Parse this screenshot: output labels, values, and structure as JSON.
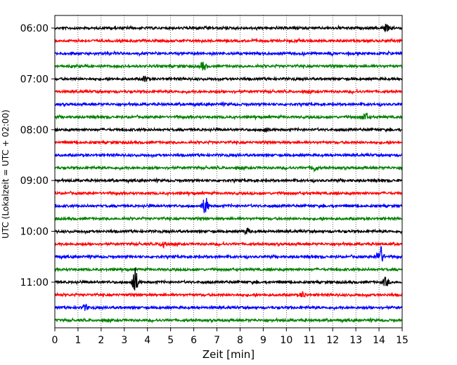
{
  "chart_data": {
    "type": "line",
    "title": "",
    "xlabel": "Zeit  [min]",
    "ylabel": "UTC (Lokalzeit = UTC + 02:00)",
    "xlim": [
      0,
      15
    ],
    "x_ticks": [
      "0",
      "1",
      "2",
      "3",
      "4",
      "5",
      "6",
      "7",
      "8",
      "9",
      "10",
      "11",
      "12",
      "13",
      "14",
      "15"
    ],
    "y_tick_labels": [
      "06:00",
      "07:00",
      "08:00",
      "09:00",
      "10:00",
      "11:00"
    ],
    "y_tick_trace_index": [
      0,
      4,
      8,
      12,
      16,
      20
    ],
    "trace_interval_minutes": 15,
    "grid": "vertical dotted",
    "legend": "none",
    "color_cycle": [
      "#000000",
      "#ff0000",
      "#0000ff",
      "#008000"
    ],
    "traces": [
      {
        "start": "06:00",
        "color": "#000000",
        "events": [
          {
            "t": 14.3,
            "amp": 0.28
          }
        ]
      },
      {
        "start": "06:15",
        "color": "#ff0000",
        "events": []
      },
      {
        "start": "06:30",
        "color": "#0000ff",
        "events": []
      },
      {
        "start": "06:45",
        "color": "#008000",
        "events": [
          {
            "t": 6.4,
            "amp": 0.3
          }
        ]
      },
      {
        "start": "07:00",
        "color": "#000000",
        "events": [
          {
            "t": 3.9,
            "amp": 0.22
          }
        ]
      },
      {
        "start": "07:15",
        "color": "#ff0000",
        "events": []
      },
      {
        "start": "07:30",
        "color": "#0000ff",
        "events": []
      },
      {
        "start": "07:45",
        "color": "#008000",
        "events": [
          {
            "t": 13.4,
            "amp": 0.3
          }
        ]
      },
      {
        "start": "08:00",
        "color": "#000000",
        "events": [
          {
            "t": 9.1,
            "amp": 0.25
          }
        ]
      },
      {
        "start": "08:15",
        "color": "#ff0000",
        "events": []
      },
      {
        "start": "08:30",
        "color": "#0000ff",
        "events": []
      },
      {
        "start": "08:45",
        "color": "#008000",
        "events": [
          {
            "t": 11.2,
            "amp": 0.22
          }
        ]
      },
      {
        "start": "09:00",
        "color": "#000000",
        "events": []
      },
      {
        "start": "09:15",
        "color": "#ff0000",
        "events": []
      },
      {
        "start": "09:30",
        "color": "#0000ff",
        "events": [
          {
            "t": 6.5,
            "amp": 0.7
          }
        ]
      },
      {
        "start": "09:45",
        "color": "#008000",
        "events": []
      },
      {
        "start": "10:00",
        "color": "#000000",
        "events": [
          {
            "t": 8.3,
            "amp": 0.22
          }
        ]
      },
      {
        "start": "10:15",
        "color": "#ff0000",
        "events": [
          {
            "t": 4.7,
            "amp": 0.3
          }
        ]
      },
      {
        "start": "10:30",
        "color": "#0000ff",
        "events": [
          {
            "t": 14.05,
            "amp": 0.85
          }
        ]
      },
      {
        "start": "10:45",
        "color": "#008000",
        "events": []
      },
      {
        "start": "11:00",
        "color": "#000000",
        "events": [
          {
            "t": 3.45,
            "amp": 1.1
          },
          {
            "t": 14.3,
            "amp": 0.35
          }
        ]
      },
      {
        "start": "11:15",
        "color": "#ff0000",
        "events": [
          {
            "t": 10.7,
            "amp": 0.22
          }
        ]
      },
      {
        "start": "11:30",
        "color": "#0000ff",
        "events": [
          {
            "t": 1.3,
            "amp": 0.2
          }
        ]
      },
      {
        "start": "11:45",
        "color": "#008000",
        "events": []
      }
    ]
  }
}
